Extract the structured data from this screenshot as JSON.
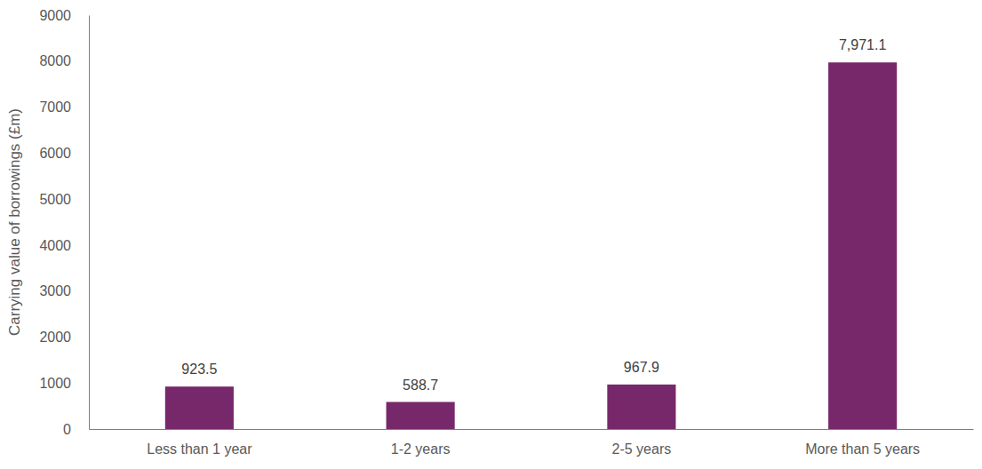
{
  "chart_data": {
    "type": "bar",
    "y_label": "Carrying value of borrowings (£m)",
    "categories": [
      "Less than 1 year",
      "1-2 years",
      "2-5 years",
      "More than 5 years"
    ],
    "values": [
      923.5,
      588.7,
      967.9,
      7971.1
    ],
    "value_labels": [
      "923.5",
      "588.7",
      "967.9",
      "7,971.1"
    ],
    "color": "#77286a",
    "ylim": [
      0,
      9000
    ],
    "yticks": [
      0,
      1000,
      2000,
      3000,
      4000,
      5000,
      6000,
      7000,
      8000,
      9000
    ],
    "data_labels": true,
    "grid": false
  }
}
